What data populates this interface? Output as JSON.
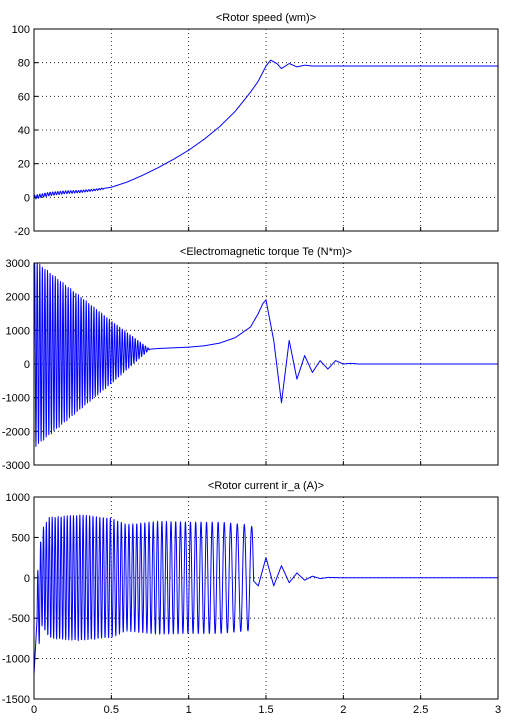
{
  "figure": {
    "background": "#ffffff",
    "trace_color": "#0000ff"
  },
  "chart_data": [
    {
      "type": "line",
      "title": "<Rotor speed (wm)>",
      "xlabel": "",
      "ylabel": "",
      "xlim": [
        0,
        3
      ],
      "ylim": [
        -20,
        100
      ],
      "xticks": [
        0,
        0.5,
        1,
        1.5,
        2,
        2.5,
        3
      ],
      "xtick_labels": [
        "",
        "",
        "",
        "",
        "",
        "",
        ""
      ],
      "yticks": [
        -20,
        0,
        20,
        40,
        60,
        80,
        100
      ],
      "ytick_labels": [
        "-20",
        "0",
        "20",
        "40",
        "60",
        "80",
        "100"
      ],
      "grid": true,
      "series": [
        {
          "color": "#0000ff",
          "x": [
            0,
            0.1,
            0.2,
            0.3,
            0.4,
            0.5,
            0.6,
            0.7,
            0.8,
            0.9,
            1.0,
            1.1,
            1.2,
            1.3,
            1.4,
            1.45,
            1.5,
            1.53,
            1.57,
            1.6,
            1.65,
            1.7,
            1.75,
            1.8,
            1.9,
            2.0,
            2.5,
            3.0
          ],
          "y": [
            0,
            2,
            3,
            3.5,
            4.5,
            6,
            9,
            13,
            17.5,
            22.5,
            28,
            34.5,
            42,
            51,
            62.5,
            69,
            78,
            81.5,
            79.5,
            76.5,
            79.5,
            77.5,
            78.5,
            78,
            78,
            78,
            78,
            78
          ],
          "ripple": [
            {
              "x_start": 0,
              "x_end": 0.45,
              "amp_start": 1.2,
              "amp_end": 0.4,
              "freq": 60
            }
          ]
        }
      ]
    },
    {
      "type": "line",
      "title": "<Electromagnetic torque Te (N*m)>",
      "xlabel": "",
      "ylabel": "",
      "xlim": [
        0,
        3
      ],
      "ylim": [
        -3000,
        3000
      ],
      "xticks": [
        0,
        0.5,
        1,
        1.5,
        2,
        2.5,
        3
      ],
      "xtick_labels": [
        "",
        "",
        "",
        "",
        "",
        "",
        ""
      ],
      "yticks": [
        -3000,
        -2000,
        -1000,
        0,
        1000,
        2000,
        3000
      ],
      "ytick_labels": [
        "-3000",
        "-2000",
        "-1000",
        "0",
        "1000",
        "2000",
        "3000"
      ],
      "grid": true,
      "series": [
        {
          "color": "#0000ff",
          "x": [
            0,
            0.5,
            0.7,
            0.8,
            0.9,
            1.0,
            1.1,
            1.2,
            1.3,
            1.4,
            1.45,
            1.48,
            1.5,
            1.55,
            1.6,
            1.65,
            1.7,
            1.75,
            1.8,
            1.85,
            1.9,
            1.95,
            2.0,
            2.05,
            2.1,
            2.2,
            3.0
          ],
          "y": [
            300,
            350,
            420,
            460,
            480,
            500,
            540,
            620,
            780,
            1100,
            1500,
            1800,
            1900,
            700,
            -1150,
            700,
            -450,
            250,
            -250,
            100,
            -150,
            100,
            0,
            20,
            0,
            0,
            0
          ],
          "ripple": [
            {
              "x_start": 0,
              "x_end": 0.75,
              "amp_start": 2800,
              "amp_end": 0,
              "freq": 60
            }
          ]
        }
      ]
    },
    {
      "type": "line",
      "title": "<Rotor current ir_a (A)>",
      "xlabel": "",
      "ylabel": "",
      "xlim": [
        0,
        3
      ],
      "ylim": [
        -1500,
        1000
      ],
      "xticks": [
        0,
        0.5,
        1,
        1.5,
        2,
        2.5,
        3
      ],
      "xtick_labels": [
        "0",
        "0.5",
        "1",
        "1.5",
        "2",
        "2.5",
        "3"
      ],
      "yticks": [
        -1500,
        -1000,
        -500,
        0,
        500,
        1000
      ],
      "ytick_labels": [
        "-1500",
        "-1000",
        "-500",
        "0",
        "500",
        "1000"
      ],
      "grid": true,
      "series": [
        {
          "color": "#0000ff",
          "x": [
            0,
            0.02,
            0.05,
            0.1,
            0.2,
            0.3,
            0.4,
            0.5,
            0.6,
            0.7,
            0.8,
            0.9,
            1.0,
            1.1,
            1.2,
            1.3,
            1.4,
            1.45,
            1.5,
            1.55,
            1.6,
            1.65,
            1.7,
            1.75,
            1.8,
            1.85,
            1.9,
            2.0,
            3.0
          ],
          "y": [
            -1200,
            -500,
            0,
            0,
            0,
            0,
            0,
            0,
            0,
            0,
            0,
            0,
            0,
            0,
            0,
            0,
            0,
            -100,
            250,
            -100,
            150,
            -60,
            60,
            -30,
            20,
            -10,
            5,
            0,
            0
          ],
          "ripple": [
            {
              "x_start": 0.02,
              "x_end": 1.42,
              "amp_start": 720,
              "amp_end": 700,
              "freq": 55,
              "freq_end": 20,
              "envelope": [
                [
                  0.02,
                  500
                ],
                [
                  0.1,
                  750
                ],
                [
                  0.3,
                  780
                ],
                [
                  0.5,
                  740
                ],
                [
                  0.6,
                  660
                ],
                [
                  0.8,
                  700
                ],
                [
                  1.0,
                  690
                ],
                [
                  1.2,
                  690
                ],
                [
                  1.42,
                  650
                ]
              ]
            }
          ]
        }
      ]
    }
  ]
}
